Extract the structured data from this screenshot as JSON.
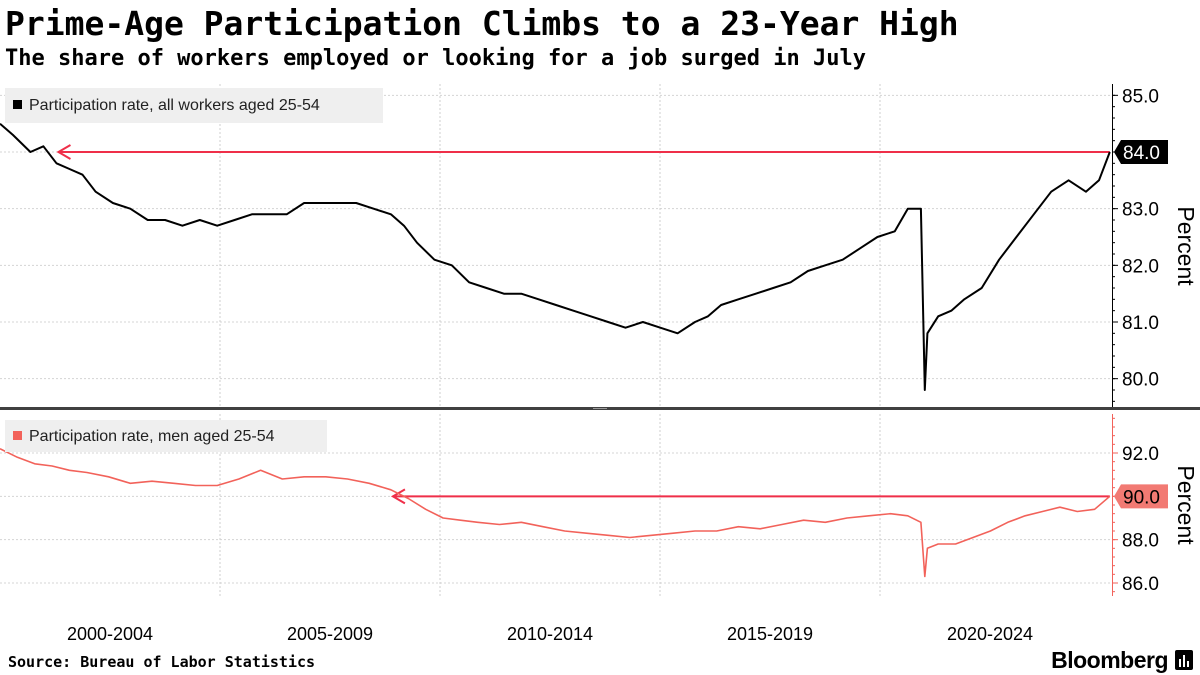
{
  "header": {
    "title": "Prime-Age Participation Climbs to a 23-Year High",
    "subtitle": "The share of workers employed or looking for a job surged in July"
  },
  "footer": {
    "source": "Source: Bureau of Labor Statistics",
    "brand": "Bloomberg"
  },
  "colors": {
    "all_workers_line": "#000000",
    "men_line": "#f2625a",
    "reference_arrow": "#ef2f49",
    "men_label_fill": "#f27a73",
    "grid": "#cfcfcf",
    "legend_bg": "#efefef"
  },
  "chart_data": {
    "type": "line",
    "x_tick_labels": [
      "2000-2004",
      "2005-2009",
      "2010-2014",
      "2015-2019",
      "2020-2024"
    ],
    "x_range": [
      1999.0,
      2024.6
    ],
    "panels": [
      {
        "id": "all-workers",
        "legend": "Participation rate, all workers aged 25-54",
        "ylabel": "Percent",
        "ylim": [
          79.5,
          85.2
        ],
        "yticks": [
          80.0,
          81.0,
          82.0,
          83.0,
          84.0,
          85.0
        ],
        "ytick_labels": [
          "80.0",
          "81.0",
          "82.0",
          "83.0",
          "84.0",
          "85.0"
        ],
        "last_value": 84.0,
        "last_value_label": "84.0",
        "reference_line": {
          "value": 84.0,
          "from_x": 2000.3,
          "to_x": 2024.55
        },
        "series": {
          "name": "Participation rate, all workers aged 25-54",
          "x": [
            1999.0,
            1999.3,
            1999.7,
            2000.0,
            2000.3,
            2000.6,
            2000.9,
            2001.2,
            2001.6,
            2002.0,
            2002.4,
            2002.8,
            2003.2,
            2003.6,
            2004.0,
            2004.4,
            2004.8,
            2005.2,
            2005.6,
            2006.0,
            2006.4,
            2006.8,
            2007.2,
            2007.6,
            2008.0,
            2008.3,
            2008.6,
            2009.0,
            2009.4,
            2009.8,
            2010.2,
            2010.6,
            2011.0,
            2011.4,
            2011.8,
            2012.2,
            2012.6,
            2013.0,
            2013.4,
            2013.8,
            2014.2,
            2014.6,
            2015.0,
            2015.3,
            2015.6,
            2016.0,
            2016.4,
            2016.8,
            2017.2,
            2017.6,
            2018.0,
            2018.4,
            2018.8,
            2019.2,
            2019.6,
            2019.9,
            2020.2,
            2020.29,
            2020.35,
            2020.6,
            2020.9,
            2021.2,
            2021.6,
            2022.0,
            2022.4,
            2022.8,
            2023.2,
            2023.6,
            2024.0,
            2024.3,
            2024.55
          ],
          "values": [
            84.5,
            84.3,
            84.0,
            84.1,
            83.8,
            83.7,
            83.6,
            83.3,
            83.1,
            83.0,
            82.8,
            82.8,
            82.7,
            82.8,
            82.7,
            82.8,
            82.9,
            82.9,
            82.9,
            83.1,
            83.1,
            83.1,
            83.1,
            83.0,
            82.9,
            82.7,
            82.4,
            82.1,
            82.0,
            81.7,
            81.6,
            81.5,
            81.5,
            81.4,
            81.3,
            81.2,
            81.1,
            81.0,
            80.9,
            81.0,
            80.9,
            80.8,
            81.0,
            81.1,
            81.3,
            81.4,
            81.5,
            81.6,
            81.7,
            81.9,
            82.0,
            82.1,
            82.3,
            82.5,
            82.6,
            83.0,
            83.0,
            79.8,
            80.8,
            81.1,
            81.2,
            81.4,
            81.6,
            82.1,
            82.5,
            82.9,
            83.3,
            83.5,
            83.3,
            83.5,
            84.0
          ]
        }
      },
      {
        "id": "men",
        "legend": "Participation rate, men aged 25-54",
        "ylabel": "Percent",
        "ylim": [
          85.4,
          93.8
        ],
        "yticks": [
          86.0,
          88.0,
          90.0,
          92.0
        ],
        "ytick_labels": [
          "86.0",
          "88.0",
          "90.0",
          "92.0"
        ],
        "last_value": 90.0,
        "last_value_label": "90.0",
        "reference_line": {
          "value": 90.0,
          "from_x": 2008.0,
          "to_x": 2024.55
        },
        "series": {
          "name": "Participation rate, men aged 25-54",
          "x": [
            1999.0,
            1999.4,
            1999.8,
            2000.2,
            2000.6,
            2001.0,
            2001.5,
            2002.0,
            2002.5,
            2003.0,
            2003.5,
            2004.0,
            2004.5,
            2005.0,
            2005.5,
            2006.0,
            2006.5,
            2007.0,
            2007.5,
            2008.0,
            2008.4,
            2008.8,
            2009.2,
            2009.6,
            2010.0,
            2010.5,
            2011.0,
            2011.5,
            2012.0,
            2012.5,
            2013.0,
            2013.5,
            2014.0,
            2014.5,
            2015.0,
            2015.5,
            2016.0,
            2016.5,
            2017.0,
            2017.5,
            2018.0,
            2018.5,
            2019.0,
            2019.5,
            2019.9,
            2020.2,
            2020.29,
            2020.35,
            2020.6,
            2021.0,
            2021.4,
            2021.8,
            2022.2,
            2022.6,
            2023.0,
            2023.4,
            2023.8,
            2024.2,
            2024.55
          ],
          "values": [
            92.2,
            91.8,
            91.5,
            91.4,
            91.2,
            91.1,
            90.9,
            90.6,
            90.7,
            90.6,
            90.5,
            90.5,
            90.8,
            91.2,
            90.8,
            90.9,
            90.9,
            90.8,
            90.6,
            90.3,
            89.9,
            89.4,
            89.0,
            88.9,
            88.8,
            88.7,
            88.8,
            88.6,
            88.4,
            88.3,
            88.2,
            88.1,
            88.2,
            88.3,
            88.4,
            88.4,
            88.6,
            88.5,
            88.7,
            88.9,
            88.8,
            89.0,
            89.1,
            89.2,
            89.1,
            88.8,
            86.3,
            87.6,
            87.8,
            87.8,
            88.1,
            88.4,
            88.8,
            89.1,
            89.3,
            89.5,
            89.3,
            89.4,
            90.0
          ]
        }
      }
    ]
  }
}
